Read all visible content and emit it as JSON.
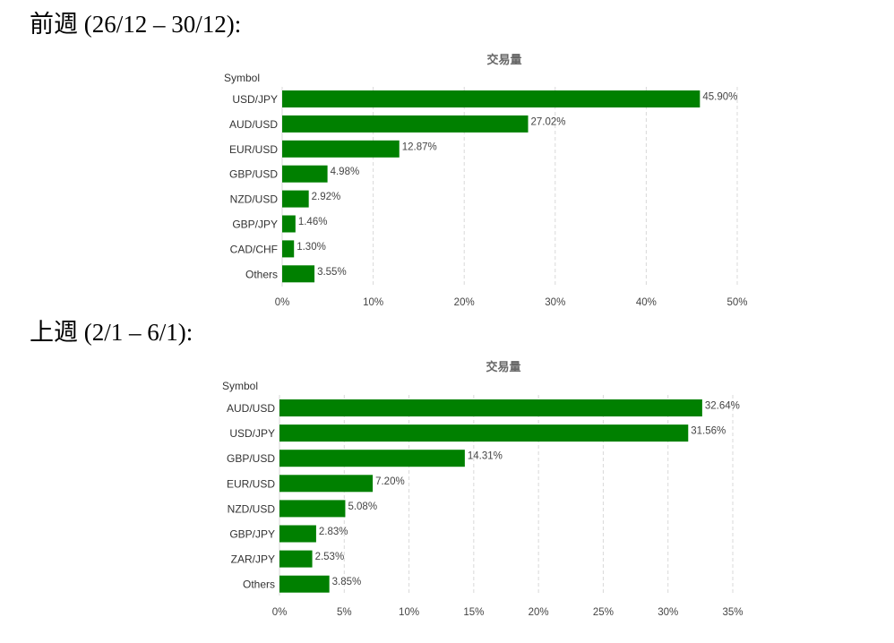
{
  "headings": {
    "prev_week": "前週 (26/12 – 30/12):",
    "last_week": "上週 (2/1 – 6/1):"
  },
  "colors": {
    "bar": "#008000",
    "grid": "#d9d9d9"
  },
  "chart_data": [
    {
      "type": "bar",
      "orientation": "horizontal",
      "title": "交易量",
      "ylabel": "Symbol",
      "xlabel": "",
      "categories": [
        "USD/JPY",
        "AUD/USD",
        "EUR/USD",
        "GBP/USD",
        "NZD/USD",
        "GBP/JPY",
        "CAD/CHF",
        "Others"
      ],
      "values": [
        45.9,
        27.02,
        12.87,
        4.98,
        2.92,
        1.46,
        1.3,
        3.55
      ],
      "value_labels": [
        "45.90%",
        "27.02%",
        "12.87%",
        "4.98%",
        "2.92%",
        "1.46%",
        "1.30%",
        "3.55%"
      ],
      "xlim": [
        0,
        50
      ],
      "ticks": [
        0,
        10,
        20,
        30,
        40,
        50
      ],
      "tick_labels": [
        "0%",
        "10%",
        "20%",
        "30%",
        "40%",
        "50%"
      ],
      "grid": true
    },
    {
      "type": "bar",
      "orientation": "horizontal",
      "title": "交易量",
      "ylabel": "Symbol",
      "xlabel": "",
      "categories": [
        "AUD/USD",
        "USD/JPY",
        "GBP/USD",
        "EUR/USD",
        "NZD/USD",
        "GBP/JPY",
        "ZAR/JPY",
        "Others"
      ],
      "values": [
        32.64,
        31.56,
        14.31,
        7.2,
        5.08,
        2.83,
        2.53,
        3.85
      ],
      "value_labels": [
        "32.64%",
        "31.56%",
        "14.31%",
        "7.20%",
        "5.08%",
        "2.83%",
        "2.53%",
        "3.85%"
      ],
      "xlim": [
        0,
        35
      ],
      "ticks": [
        0,
        5,
        10,
        15,
        20,
        25,
        30,
        35
      ],
      "tick_labels": [
        "0%",
        "5%",
        "10%",
        "15%",
        "20%",
        "25%",
        "30%",
        "35%"
      ],
      "grid": true
    }
  ]
}
